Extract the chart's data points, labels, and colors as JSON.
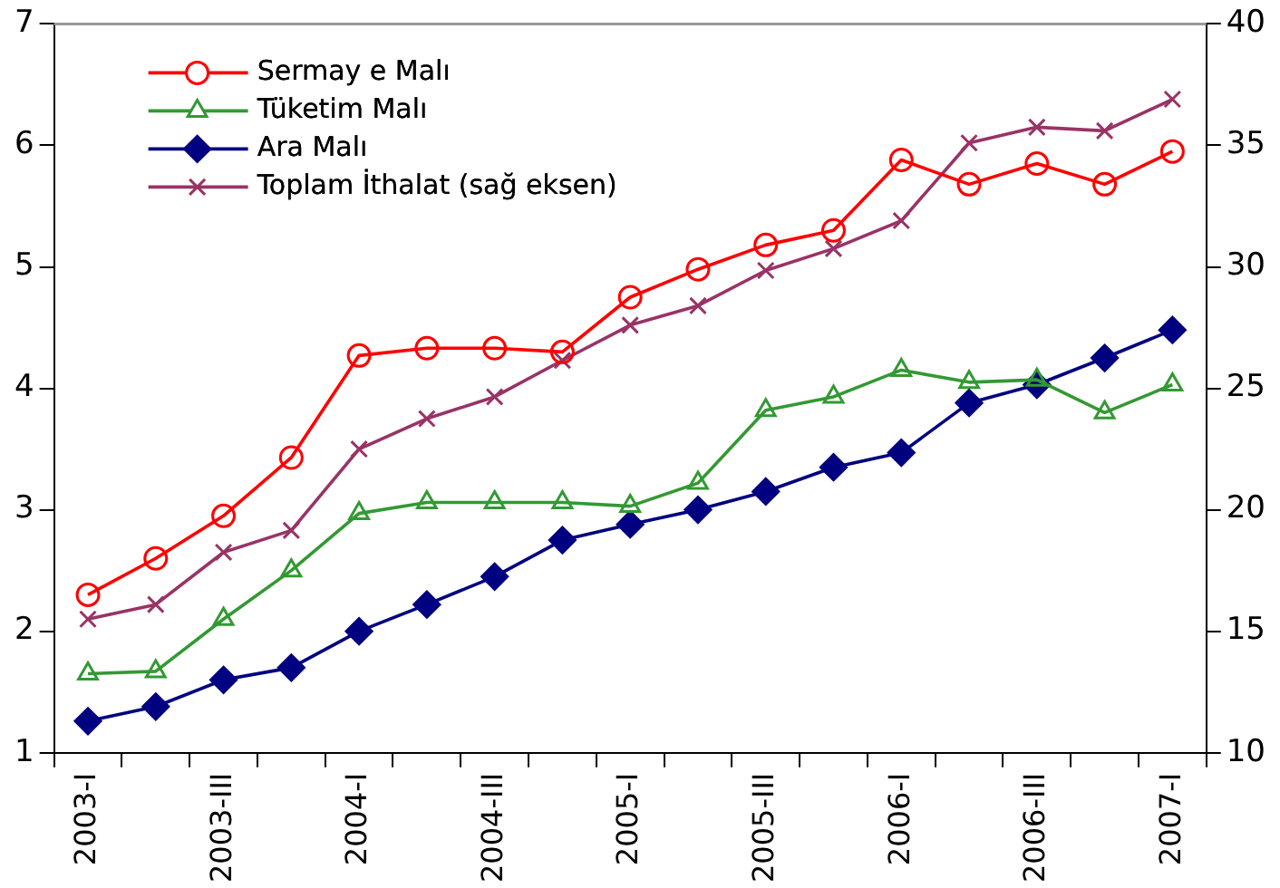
{
  "chart_data": {
    "type": "line",
    "categories": [
      "2003-I",
      null,
      "2003-III",
      null,
      "2004-I",
      null,
      "2004-III",
      null,
      "2005-I",
      null,
      "2005-III",
      null,
      "2006-I",
      null,
      "2006-III",
      null,
      "2007-I"
    ],
    "series": [
      {
        "name": "Sermay e Malı",
        "color": "#ff0000",
        "marker": "circle",
        "values": [
          2.3,
          2.6,
          2.95,
          3.43,
          4.27,
          4.33,
          4.33,
          4.3,
          4.75,
          4.98,
          5.18,
          5.3,
          5.88,
          5.68,
          5.85,
          5.68,
          5.95
        ]
      },
      {
        "name": "Tüketim Malı",
        "color": "#339933",
        "marker": "triangle",
        "values": [
          1.65,
          1.67,
          2.1,
          2.5,
          2.97,
          3.06,
          3.06,
          3.06,
          3.03,
          3.22,
          3.82,
          3.93,
          4.15,
          4.05,
          4.07,
          3.8,
          4.03
        ]
      },
      {
        "name": "Ara Malı",
        "color": "#000080",
        "marker": "diamond",
        "values": [
          1.26,
          1.38,
          1.6,
          1.7,
          2.0,
          2.22,
          2.45,
          2.75,
          2.88,
          3.0,
          3.15,
          3.35,
          3.47,
          3.88,
          4.03,
          4.25,
          4.48
        ]
      },
      {
        "name": "Toplam İthalat (sağ eksen)",
        "color": "#993366",
        "marker": "cross",
        "axis": "y2",
        "values": [
          15.5,
          16.1,
          18.25,
          19.15,
          22.5,
          23.75,
          24.65,
          26.15,
          27.6,
          28.4,
          29.85,
          30.75,
          31.9,
          35.1,
          35.75,
          35.6,
          36.9
        ]
      }
    ],
    "ylim": [
      1,
      7
    ],
    "yticks": [
      1,
      2,
      3,
      4,
      5,
      6,
      7
    ],
    "y2lim": [
      10,
      40
    ],
    "y2ticks": [
      10,
      15,
      20,
      25,
      30,
      35,
      40
    ],
    "legend": "top left",
    "grid": false
  }
}
